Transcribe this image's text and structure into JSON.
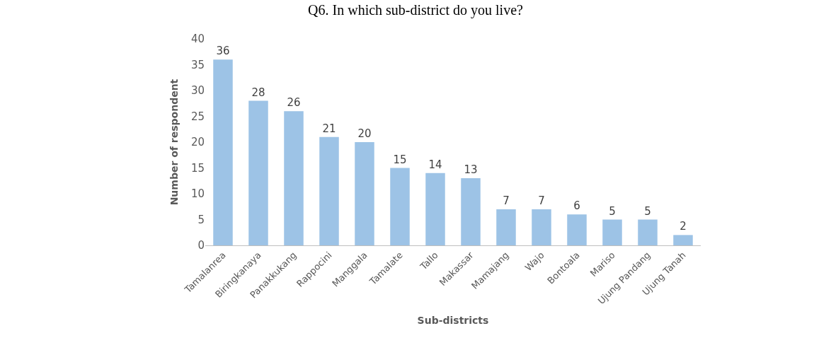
{
  "chart_data": {
    "type": "bar",
    "title": "Q6. In which sub-district do you live?",
    "xlabel": "Sub-districts",
    "ylabel": "Number of respondent",
    "categories": [
      "Tamalanrea",
      "Biringkanaya",
      "Panakkukang",
      "Rappocini",
      "Manggala",
      "Tamalate",
      "Tallo",
      "Makassar",
      "Mamajang",
      "Wajo",
      "Bontoala",
      "Mariso",
      "Ujung Pandang",
      "Ujung Tanah"
    ],
    "values": [
      36,
      28,
      26,
      21,
      20,
      15,
      14,
      13,
      7,
      7,
      6,
      5,
      5,
      2
    ],
    "color": "#9dc3e6",
    "ylim": [
      0,
      40
    ],
    "yticks": [
      0,
      5,
      10,
      15,
      20,
      25,
      30,
      35,
      40
    ],
    "legend": false,
    "data_labels": true
  }
}
